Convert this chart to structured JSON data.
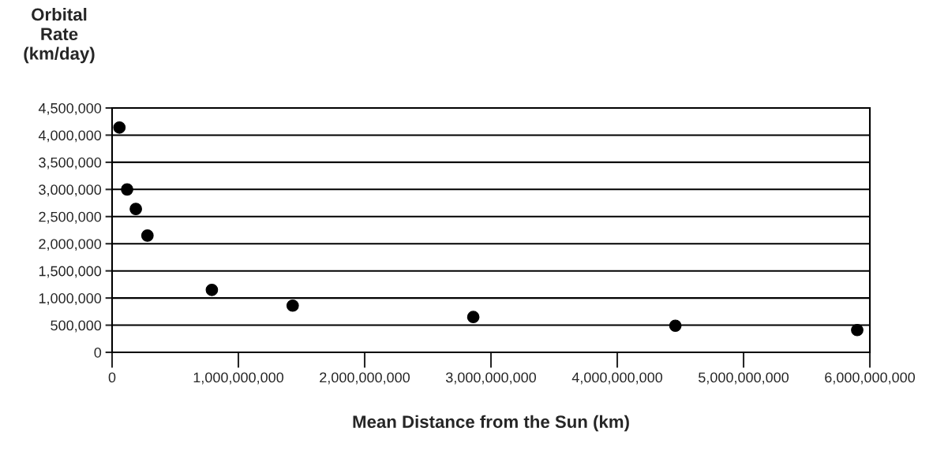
{
  "chart_data": {
    "type": "scatter",
    "xlabel": "Mean Distance from the Sun (km)",
    "ylabel": "Orbital\nRate\n(km/day)",
    "x": [
      58000000,
      119000000,
      188000000,
      280000000,
      790000000,
      1430000000,
      2860000000,
      4460000000,
      5900000000
    ],
    "series": [
      {
        "color": "#000000",
        "values": [
          4140000,
          3000000,
          2640000,
          2150000,
          1150000,
          860000,
          650000,
          490000,
          410000
        ]
      }
    ],
    "xlim": [
      0,
      6000000000
    ],
    "xticks": [
      0,
      {
        "value": 1000000000,
        "label": "1,000,000,000"
      },
      {
        "value": 2000000000,
        "label": "2,000,000,000"
      },
      {
        "value": 3000000000,
        "label": "3,000,000,000"
      },
      {
        "value": 4000000000,
        "label": "4,000,000,000"
      },
      {
        "value": 5000000000,
        "label": "5,000,000,000"
      },
      {
        "value": 6000000000,
        "label": "6,000,000,000"
      }
    ],
    "ylim": [
      0,
      4500000
    ],
    "yticks": [
      0,
      {
        "value": 500000,
        "label": "500,000"
      },
      {
        "value": 1000000,
        "label": "1,000,000"
      },
      {
        "value": 1500000,
        "label": "1,500,000"
      },
      {
        "value": 2000000,
        "label": "2,000,000"
      },
      {
        "value": 2500000,
        "label": "2,500,000"
      },
      {
        "value": 3000000,
        "label": "3,000,000"
      },
      {
        "value": 3500000,
        "label": "3,500,000"
      },
      {
        "value": 4000000,
        "label": "4,000,000"
      },
      {
        "value": 4500000,
        "label": "4,500,000"
      }
    ],
    "grid": "y",
    "marker": "circle"
  }
}
